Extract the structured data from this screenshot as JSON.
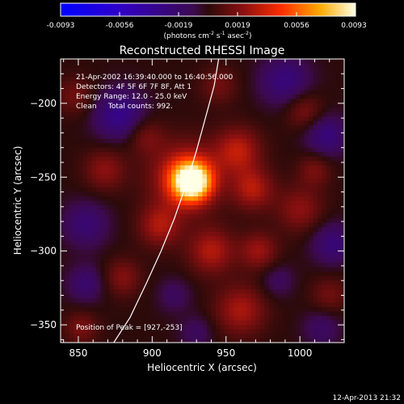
{
  "colorbar": {
    "ticks": [
      "-0.0093",
      "-0.0056",
      "-0.0019",
      "0.0019",
      "0.0056",
      "0.0093"
    ],
    "unit_prefix": "(photons cm",
    "unit_exp1": "-2",
    "unit_mid1": " s",
    "unit_exp2": "-1",
    "unit_mid2": " asec",
    "unit_exp3": "-2",
    "unit_suffix": ")"
  },
  "chart_data": {
    "type": "heatmap",
    "title": "Reconstructed RHESSI Image",
    "xlabel": "Heliocentric X (arcsec)",
    "ylabel": "Heliocentric Y (arcsec)",
    "xlim": [
      838,
      1030
    ],
    "ylim": [
      -362,
      -170
    ],
    "xticks": [
      850,
      900,
      950,
      1000
    ],
    "yticks": [
      -200,
      -250,
      -300,
      -350
    ],
    "ytick_labels": [
      "−200",
      "−250",
      "−300",
      "−350"
    ],
    "clim": [
      -0.0093,
      0.0093
    ],
    "info_lines": [
      "21-Apr-2002 16:39:40.000 to 16:40:56.000",
      "Detectors: 4F 5F 6F 7F 8F, Att 1",
      "Energy Range: 12.0 - 25.0 keV",
      "Clean     Total counts: 992."
    ],
    "peak_label": "Position of Peak = [927,-253]",
    "peak": [
      927,
      -253
    ],
    "blobs": [
      {
        "x": 927,
        "y": -253,
        "amp": 0.0093,
        "sigma": 9
      },
      {
        "x": 922,
        "y": -250,
        "amp": 0.004,
        "sigma": 16
      },
      {
        "x": 958,
        "y": -232,
        "amp": 0.0032,
        "sigma": 11
      },
      {
        "x": 968,
        "y": -258,
        "amp": 0.003,
        "sigma": 10
      },
      {
        "x": 905,
        "y": -283,
        "amp": 0.0028,
        "sigma": 10
      },
      {
        "x": 940,
        "y": -300,
        "amp": 0.003,
        "sigma": 11
      },
      {
        "x": 972,
        "y": -300,
        "amp": 0.0025,
        "sigma": 9
      },
      {
        "x": 1000,
        "y": -272,
        "amp": 0.0022,
        "sigma": 11
      },
      {
        "x": 960,
        "y": -340,
        "amp": 0.0028,
        "sigma": 12
      },
      {
        "x": 1003,
        "y": -205,
        "amp": 0.002,
        "sigma": 9
      },
      {
        "x": 868,
        "y": -245,
        "amp": 0.0022,
        "sigma": 10
      },
      {
        "x": 880,
        "y": -318,
        "amp": 0.002,
        "sigma": 9
      },
      {
        "x": 895,
        "y": -222,
        "amp": 0.0018,
        "sigma": 9
      },
      {
        "x": 848,
        "y": -195,
        "amp": 0.0016,
        "sigma": 9
      },
      {
        "x": 1020,
        "y": -330,
        "amp": 0.0016,
        "sigma": 9
      },
      {
        "x": 852,
        "y": -352,
        "amp": 0.0018,
        "sigma": 8
      },
      {
        "x": 945,
        "y": -188,
        "amp": 0.0016,
        "sigma": 9
      },
      {
        "x": 1010,
        "y": -245,
        "amp": 0.0018,
        "sigma": 8
      },
      {
        "x": 878,
        "y": -208,
        "amp": -0.0032,
        "sigma": 12
      },
      {
        "x": 990,
        "y": -185,
        "amp": -0.0026,
        "sigma": 12
      },
      {
        "x": 1018,
        "y": -222,
        "amp": -0.0026,
        "sigma": 10
      },
      {
        "x": 1022,
        "y": -295,
        "amp": -0.0024,
        "sigma": 10
      },
      {
        "x": 855,
        "y": -282,
        "amp": -0.0022,
        "sigma": 11
      },
      {
        "x": 855,
        "y": -322,
        "amp": -0.002,
        "sigma": 9
      },
      {
        "x": 1015,
        "y": -352,
        "amp": -0.0016,
        "sigma": 9
      },
      {
        "x": 930,
        "y": -355,
        "amp": -0.0014,
        "sigma": 8
      },
      {
        "x": 985,
        "y": -320,
        "amp": -0.0014,
        "sigma": 8
      },
      {
        "x": 915,
        "y": -330,
        "amp": -0.0014,
        "sigma": 8
      }
    ],
    "limb_curve": [
      [
        874,
        -362
      ],
      [
        885,
        -345
      ],
      [
        896,
        -322
      ],
      [
        906,
        -300
      ],
      [
        915,
        -278
      ],
      [
        923,
        -255
      ],
      [
        930,
        -232
      ],
      [
        936,
        -210
      ],
      [
        942,
        -188
      ],
      [
        945,
        -170
      ]
    ]
  },
  "timestamp": "12-Apr-2013 21:32"
}
